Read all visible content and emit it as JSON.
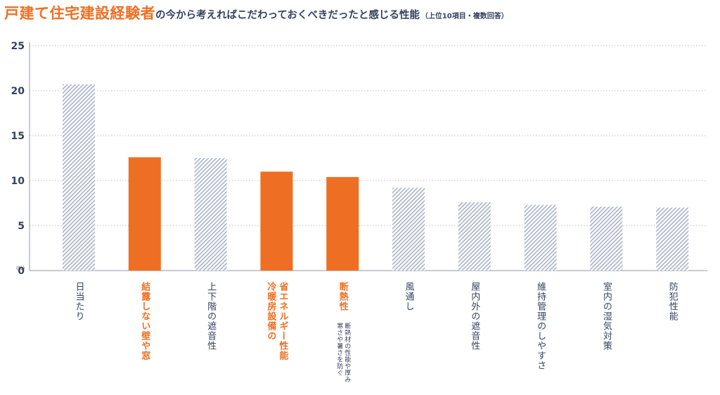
{
  "title": {
    "accent": "戸建て住宅建設経験者",
    "rest": "の今から考えればこだわっておくべきだったと感じる性能",
    "note": "（上位10項目・複数回答）"
  },
  "colors": {
    "highlight": "#ee6f23",
    "hatch": "#a9b1c6",
    "text": "#34425f",
    "grid": "#b9bfcb"
  },
  "chart_data": {
    "type": "bar",
    "unit_label": "(%)",
    "ylim": [
      0,
      25
    ],
    "yticks": [
      0,
      5,
      10,
      15,
      20,
      25
    ],
    "grid": true,
    "categories": [
      "日当たり",
      "結露しない壁や窓",
      "上下階の遮音性",
      "省エネルギー性能\n冷暖房設備の",
      "断熱性",
      "風通し",
      "屋内外の遮音性",
      "維持管理のしやすさ",
      "室内の湿気対策",
      "防犯性能"
    ],
    "values": [
      20.7,
      12.6,
      12.5,
      11.0,
      10.4,
      9.2,
      7.6,
      7.3,
      7.1,
      7.0
    ],
    "highlighted": [
      false,
      true,
      false,
      true,
      true,
      false,
      false,
      false,
      false,
      false
    ],
    "sublabels": [
      "",
      "",
      "",
      "",
      "断熱材の性能や厚み\n寒さや暑さを防ぐ",
      "",
      "",
      "",
      "",
      ""
    ]
  }
}
